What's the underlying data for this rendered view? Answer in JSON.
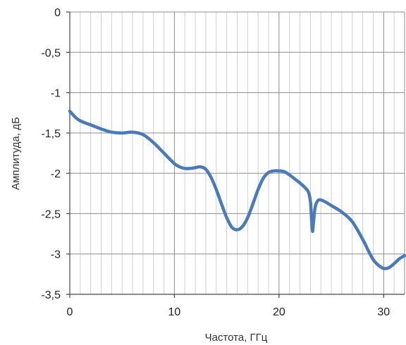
{
  "chart_data": {
    "type": "line",
    "title": "",
    "xlabel": "Частота, ГГц",
    "ylabel": "Амплитуда, дБ",
    "xlim": [
      0,
      32
    ],
    "ylim": [
      -3.5,
      0
    ],
    "x_ticks": [
      0,
      10,
      20,
      30
    ],
    "x_tick_labels": [
      "0",
      "10",
      "20",
      "30"
    ],
    "x_minor_step": 1,
    "y_ticks": [
      0,
      -0.5,
      -1,
      -1.5,
      -2,
      -2.5,
      -3,
      -3.5
    ],
    "y_tick_labels": [
      "0",
      "-0,5",
      "-1",
      "-1,5",
      "-2",
      "-2,5",
      "-3",
      "-3,5"
    ],
    "grid": true,
    "line_color": "#4a7ab9",
    "series": [
      {
        "x": [
          0,
          0.5,
          1,
          2,
          3,
          4,
          5,
          6,
          7,
          8,
          9,
          10,
          10.5,
          11,
          11.5,
          12,
          12.5,
          13,
          13.5,
          14,
          14.5,
          15,
          15.5,
          16,
          16.5,
          17,
          17.5,
          18,
          18.5,
          19,
          19.5,
          20,
          20.5,
          21,
          21.5,
          22,
          22.5,
          22.8,
          23,
          23.1,
          23.2,
          23.3,
          23.45,
          23.7,
          24,
          24.5,
          25,
          26,
          27,
          28,
          28.5,
          29,
          29.5,
          30,
          30.5,
          31,
          31.5,
          32
        ],
        "values": [
          -1.23,
          -1.3,
          -1.35,
          -1.4,
          -1.45,
          -1.49,
          -1.5,
          -1.49,
          -1.52,
          -1.62,
          -1.75,
          -1.88,
          -1.92,
          -1.94,
          -1.94,
          -1.93,
          -1.92,
          -1.95,
          -2.05,
          -2.2,
          -2.38,
          -2.55,
          -2.67,
          -2.7,
          -2.66,
          -2.55,
          -2.38,
          -2.2,
          -2.06,
          -1.99,
          -1.97,
          -1.97,
          -1.98,
          -2.02,
          -2.07,
          -2.12,
          -2.18,
          -2.23,
          -2.35,
          -2.55,
          -2.72,
          -2.6,
          -2.42,
          -2.34,
          -2.33,
          -2.36,
          -2.4,
          -2.48,
          -2.6,
          -2.82,
          -2.95,
          -3.07,
          -3.14,
          -3.18,
          -3.17,
          -3.12,
          -3.06,
          -3.02
        ]
      }
    ]
  }
}
